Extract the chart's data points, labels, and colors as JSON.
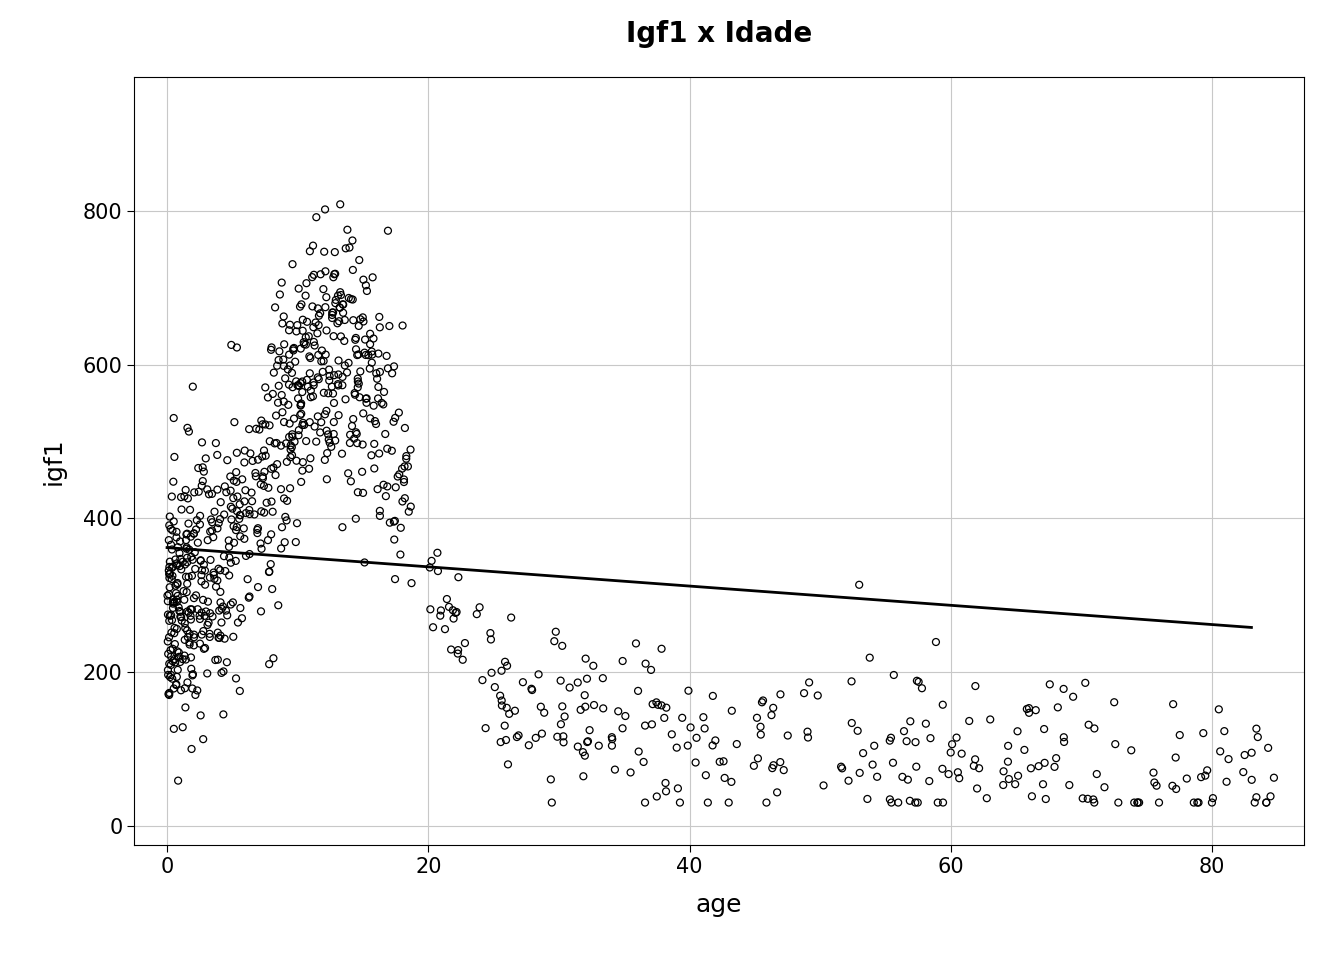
{
  "title": "Igf1 x Idade",
  "xlabel": "age",
  "ylabel": "igf1",
  "xlim": [
    -2.5,
    87
  ],
  "ylim": [
    -25,
    975
  ],
  "xticks": [
    0,
    20,
    40,
    60,
    80
  ],
  "yticks": [
    0,
    200,
    400,
    600,
    800
  ],
  "scatter_facecolor": "none",
  "scatter_edgecolor": "black",
  "line_color": "black",
  "line_lw": 2.0,
  "marker_size": 5,
  "marker_lw": 0.9,
  "grid_color": "#c8c8c8",
  "background_color": "white",
  "title_fontsize": 20,
  "label_fontsize": 18,
  "tick_fontsize": 15,
  "seed": 42,
  "n_young": 700,
  "n_mid": 120,
  "n_old": 180,
  "reg_x0": 0,
  "reg_y0": 362,
  "reg_x1": 83,
  "reg_y1": 258
}
